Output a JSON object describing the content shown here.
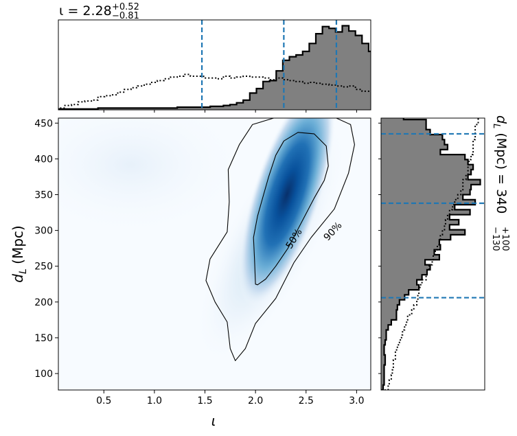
{
  "chart_data": {
    "type": "heatmap",
    "colors": {
      "hist_fill": "#808080",
      "hist_edge": "#000000",
      "marker": "#1f77b4",
      "cmap": "Blues"
    },
    "main": {
      "xlim": [
        0.05,
        3.14
      ],
      "ylim": [
        77,
        457
      ],
      "xticks": [
        "0.5",
        "1.0",
        "1.5",
        "2.0",
        "2.5",
        "3.0"
      ],
      "xtick_values": [
        0.5,
        1.0,
        1.5,
        2.0,
        2.5,
        3.0
      ],
      "yticks": [
        "100",
        "150",
        "200",
        "250",
        "300",
        "350",
        "400",
        "450"
      ],
      "ytick_values": [
        100,
        150,
        200,
        250,
        300,
        350,
        400,
        450
      ],
      "xlabel_symbol": "ι",
      "ylabel_d": "d",
      "ylabel_sub": "L",
      "ylabel_unit": " (Mpc)",
      "peak": [
        2.35,
        350
      ],
      "contours": [
        {
          "label": "50%",
          "points": [
            [
              2.0,
              225
            ],
            [
              1.99,
              260
            ],
            [
              1.98,
              290
            ],
            [
              2.02,
              320
            ],
            [
              2.08,
              350
            ],
            [
              2.13,
              375
            ],
            [
              2.2,
              405
            ],
            [
              2.28,
              425
            ],
            [
              2.42,
              437
            ],
            [
              2.58,
              435
            ],
            [
              2.7,
              418
            ],
            [
              2.72,
              390
            ],
            [
              2.68,
              370
            ],
            [
              2.58,
              345
            ],
            [
              2.45,
              310
            ],
            [
              2.32,
              275
            ],
            [
              2.2,
              250
            ],
            [
              2.1,
              232
            ],
            [
              2.02,
              224
            ],
            [
              2.0,
              225
            ]
          ]
        },
        {
          "label": "90%",
          "points": [
            [
              1.8,
              118
            ],
            [
              1.75,
              135
            ],
            [
              1.72,
              172
            ],
            [
              1.6,
              200
            ],
            [
              1.51,
              230
            ],
            [
              1.55,
              260
            ],
            [
              1.72,
              298
            ],
            [
              1.74,
              340
            ],
            [
              1.73,
              385
            ],
            [
              1.84,
              420
            ],
            [
              1.97,
              448
            ],
            [
              2.18,
              457
            ],
            [
              2.5,
              457
            ],
            [
              2.8,
              457
            ],
            [
              2.94,
              448
            ],
            [
              2.98,
              420
            ],
            [
              2.92,
              380
            ],
            [
              2.78,
              330
            ],
            [
              2.55,
              290
            ],
            [
              2.38,
              255
            ],
            [
              2.2,
              205
            ],
            [
              2.0,
              170
            ],
            [
              1.9,
              135
            ],
            [
              1.8,
              118
            ]
          ]
        }
      ]
    },
    "top": {
      "title_prefix": "ι = 2.28",
      "title_sup": "+0.52",
      "title_sub": "−0.81",
      "posterior_bins_start": 0.05,
      "posterior_bin_width": 0.0653,
      "posterior": [
        0.01,
        0.01,
        0.01,
        0.01,
        0.01,
        0.01,
        0.02,
        0.02,
        0.02,
        0.02,
        0.02,
        0.02,
        0.02,
        0.02,
        0.02,
        0.02,
        0.02,
        0.02,
        0.03,
        0.03,
        0.03,
        0.03,
        0.03,
        0.04,
        0.04,
        0.05,
        0.06,
        0.08,
        0.11,
        0.19,
        0.24,
        0.32,
        0.33,
        0.44,
        0.56,
        0.6,
        0.62,
        0.66,
        0.75,
        0.86,
        0.94,
        0.92,
        0.88,
        0.95,
        0.89,
        0.84,
        0.75,
        0.66,
        0.55,
        0.42,
        0.3,
        0.2,
        0.14,
        0.09,
        0.04,
        0.03
      ],
      "prior": [
        0.02,
        0.05,
        0.06,
        0.09,
        0.1,
        0.11,
        0.15,
        0.16,
        0.17,
        0.2,
        0.23,
        0.25,
        0.27,
        0.29,
        0.31,
        0.33,
        0.35,
        0.37,
        0.38,
        0.4,
        0.38,
        0.38,
        0.36,
        0.36,
        0.35,
        0.38,
        0.36,
        0.37,
        0.38,
        0.37,
        0.37,
        0.36,
        0.34,
        0.36,
        0.34,
        0.33,
        0.32,
        0.3,
        0.31,
        0.3,
        0.29,
        0.28,
        0.27,
        0.26,
        0.27,
        0.23,
        0.21,
        0.22,
        0.19,
        0.15,
        0.12,
        0.1,
        0.06,
        0.05,
        0.03,
        0.01
      ],
      "lines": [
        1.47,
        2.28,
        2.8
      ]
    },
    "right": {
      "label_d": "d",
      "label_sub": "L",
      "label_rest": " (Mpc) = 340",
      "label_sup": "+100",
      "label_subscript": "−130",
      "posterior_bins_start": 77,
      "posterior_bin_width": 7,
      "posterior": [
        0.02,
        0.03,
        0.03,
        0.03,
        0.03,
        0.04,
        0.04,
        0.03,
        0.03,
        0.04,
        0.05,
        0.05,
        0.07,
        0.1,
        0.15,
        0.15,
        0.16,
        0.18,
        0.23,
        0.27,
        0.37,
        0.35,
        0.4,
        0.45,
        0.48,
        0.43,
        0.57,
        0.52,
        0.58,
        0.57,
        0.68,
        0.82,
        0.67,
        0.76,
        0.67,
        0.87,
        0.72,
        0.92,
        0.8,
        0.87,
        0.88,
        0.97,
        0.85,
        0.88,
        0.9,
        0.85,
        0.82,
        0.58,
        0.65,
        0.62,
        0.6,
        0.48,
        0.44,
        0.44,
        0.22,
        0.22
      ],
      "prior": [
        0.07,
        0.08,
        0.1,
        0.11,
        0.12,
        0.12,
        0.14,
        0.14,
        0.16,
        0.18,
        0.2,
        0.21,
        0.23,
        0.25,
        0.26,
        0.3,
        0.32,
        0.35,
        0.36,
        0.37,
        0.38,
        0.4,
        0.44,
        0.45,
        0.47,
        0.5,
        0.51,
        0.53,
        0.55,
        0.57,
        0.58,
        0.6,
        0.62,
        0.63,
        0.65,
        0.67,
        0.7,
        0.72,
        0.75,
        0.78,
        0.8,
        0.8,
        0.83,
        0.85,
        0.85,
        0.86,
        0.88,
        0.9,
        0.9,
        0.9,
        0.92,
        0.92,
        0.92,
        0.95,
        0.95,
        0.97
      ],
      "lines": [
        206,
        338,
        435
      ]
    }
  }
}
